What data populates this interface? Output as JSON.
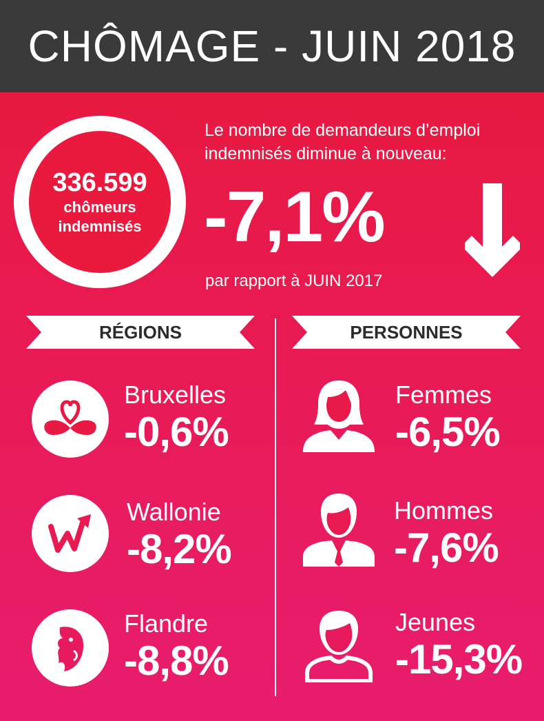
{
  "header": {
    "title": "CHÔMAGE - JUIN 2018"
  },
  "summary": {
    "count": "336.599",
    "count_label_1": "chômeurs",
    "count_label_2": "indemnisés",
    "intro_line_1": "Le nombre de demandeurs d’emploi",
    "intro_line_2": "indemnisés diminue à nouveau:",
    "change": "-7,1%",
    "comparison": "par rapport à JUIN 2017",
    "trend_icon": "down-arrow-icon"
  },
  "sections": {
    "regions_title": "RÉGIONS",
    "persons_title": "PERSONNES"
  },
  "regions": [
    {
      "name": "Bruxelles",
      "value": "-0,6%",
      "icon": "brussels-heart-logo-icon"
    },
    {
      "name": "Wallonie",
      "value": "-8,2%",
      "icon": "wallonia-w-logo-icon"
    },
    {
      "name": "Flandre",
      "value": "-8,8%",
      "icon": "flanders-lion-logo-icon"
    }
  ],
  "persons": [
    {
      "name": "Femmes",
      "value": "-6,5%",
      "icon": "woman-icon"
    },
    {
      "name": "Hommes",
      "value": "-7,6%",
      "icon": "man-icon"
    },
    {
      "name": "Jeunes",
      "value": "-15,3%",
      "icon": "young-person-icon"
    }
  ],
  "colors": {
    "header_bg": "#3a3a3a",
    "gradient_top": "#e8193a",
    "gradient_bottom": "#e81d6e",
    "banner_bg": "#ffffff",
    "banner_text": "#2b2b2b"
  }
}
